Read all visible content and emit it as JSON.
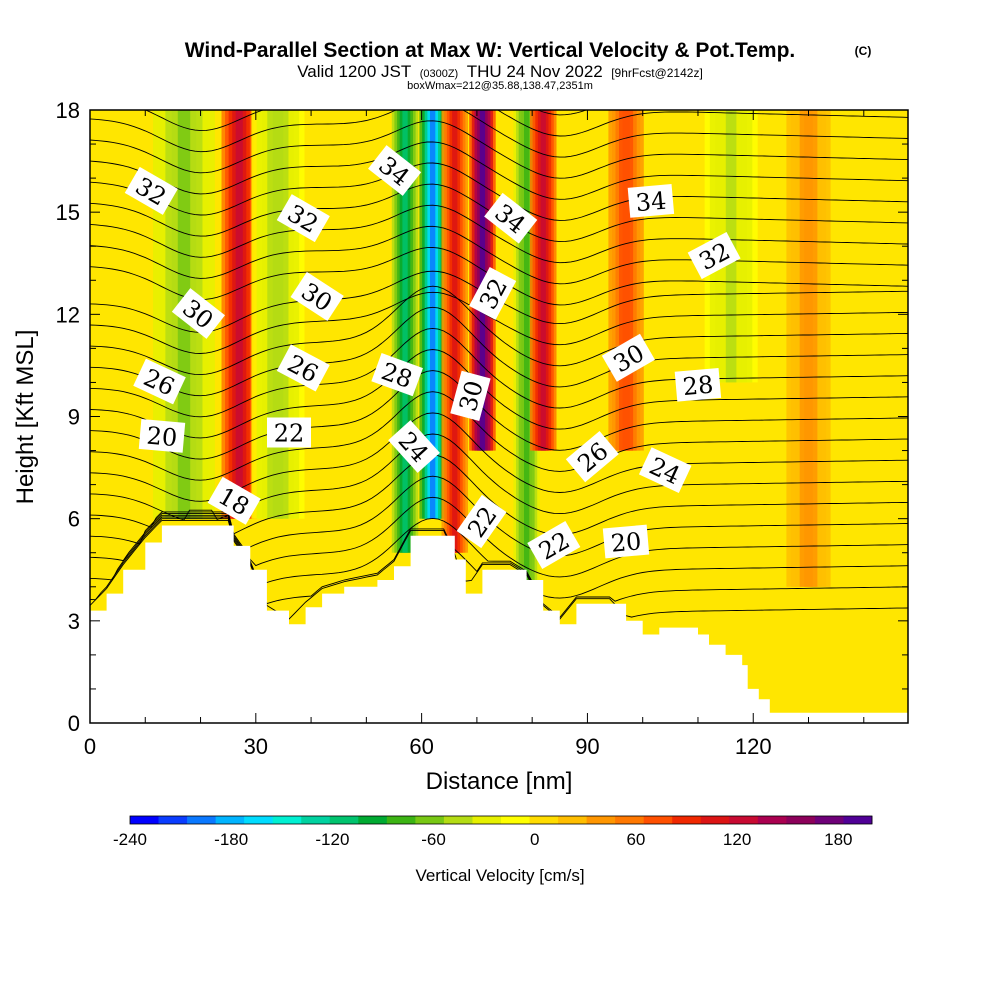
{
  "title": "Wind-Parallel Section at Max W: Vertical Velocity & Pot.Temp.",
  "title_mark": "(C)",
  "subtitle_valid": "Valid 1200 JST",
  "subtitle_utc": "(0300Z)",
  "subtitle_date": "THU 24 Nov 2022",
  "subtitle_fcst": "[9hrFcst@2142z]",
  "subtitle_box": "boxWmax=212@35.88,138.47,2351m",
  "chart_data": {
    "type": "heatmap",
    "description_fields": "vertical velocity (color fill) with potential temperature contours (labeled)",
    "xlabel": "Distance [nm]",
    "ylabel": "Height [Kft MSL]",
    "xlim": [
      0,
      148
    ],
    "ylim": [
      0,
      18
    ],
    "x_ticks": [
      0,
      30,
      60,
      90,
      120
    ],
    "y_ticks": [
      0,
      3,
      6,
      9,
      12,
      15,
      18
    ],
    "colorbar": {
      "label": "Vertical Velocity [cm/s]",
      "range": [
        -240,
        200
      ],
      "tick_values": [
        -240,
        -180,
        -120,
        -60,
        0,
        60,
        120,
        180
      ],
      "colors": [
        "#0000ff",
        "#0a3cff",
        "#0a78ff",
        "#00b4ff",
        "#00dcff",
        "#00f0d2",
        "#00d2a0",
        "#00c36e",
        "#00aa32",
        "#3cb414",
        "#78c814",
        "#b4dc14",
        "#e6f000",
        "#ffff00",
        "#ffdc00",
        "#ffbe00",
        "#ff9600",
        "#ff7800",
        "#ff5000",
        "#f02800",
        "#dc1414",
        "#c80a32",
        "#aa0050",
        "#8c005a",
        "#6e0078",
        "#500096"
      ]
    },
    "velocity_features": [
      {
        "x_center": 17,
        "width": 7,
        "y_range": [
          6,
          18
        ],
        "value": -60
      },
      {
        "x_center": 27,
        "width": 4,
        "y_range": [
          6,
          18
        ],
        "value": 130
      },
      {
        "x_center": 34,
        "width": 6,
        "y_range": [
          6,
          18
        ],
        "value": -50
      },
      {
        "x_center": 57,
        "width": 3,
        "y_range": [
          5,
          18
        ],
        "value": -110
      },
      {
        "x_center": 62,
        "width": 3,
        "y_range": [
          6,
          18
        ],
        "value": -190
      },
      {
        "x_center": 66,
        "width": 3,
        "y_range": [
          5,
          18
        ],
        "value": 100
      },
      {
        "x_center": 71,
        "width": 3,
        "y_range": [
          8,
          18
        ],
        "value": 190
      },
      {
        "x_center": 79,
        "width": 3,
        "y_range": [
          4,
          18
        ],
        "value": -80
      },
      {
        "x_center": 82,
        "width": 3,
        "y_range": [
          8,
          18
        ],
        "value": 120
      },
      {
        "x_center": 97,
        "width": 4,
        "y_range": [
          8,
          18
        ],
        "value": 80
      },
      {
        "x_center": 116,
        "width": 6,
        "y_range": [
          10,
          18
        ],
        "value": -40
      },
      {
        "x_center": 130,
        "width": 5,
        "y_range": [
          4,
          18
        ],
        "value": 40
      }
    ],
    "terrain": [
      [
        0,
        3.3
      ],
      [
        3,
        3.8
      ],
      [
        6,
        4.5
      ],
      [
        10,
        5.3
      ],
      [
        13,
        5.8
      ],
      [
        25,
        5.8
      ],
      [
        26,
        5.2
      ],
      [
        29,
        4.5
      ],
      [
        32,
        3.3
      ],
      [
        36,
        2.9
      ],
      [
        39,
        3.4
      ],
      [
        42,
        3.8
      ],
      [
        46,
        4.0
      ],
      [
        52,
        4.2
      ],
      [
        55,
        4.6
      ],
      [
        58,
        5.5
      ],
      [
        64,
        5.5
      ],
      [
        66,
        4.8
      ],
      [
        68,
        3.8
      ],
      [
        71,
        4.5
      ],
      [
        76,
        4.5
      ],
      [
        79,
        4.2
      ],
      [
        82,
        3.3
      ],
      [
        85,
        2.9
      ],
      [
        88,
        3.5
      ],
      [
        94,
        3.5
      ],
      [
        97,
        3.0
      ],
      [
        100,
        2.6
      ],
      [
        103,
        2.8
      ],
      [
        107,
        2.8
      ],
      [
        110,
        2.6
      ],
      [
        112,
        2.3
      ],
      [
        115,
        2.0
      ],
      [
        118,
        1.7
      ],
      [
        119,
        1.0
      ],
      [
        121,
        0.7
      ],
      [
        123,
        0.3
      ],
      [
        148,
        0.3
      ]
    ],
    "contour_labels": [
      {
        "text": "32",
        "x": 11,
        "y": 15.6,
        "angle": 30
      },
      {
        "text": "30",
        "x": 19.5,
        "y": 12.0,
        "angle": 38
      },
      {
        "text": "26",
        "x": 12.5,
        "y": 10.0,
        "angle": 25
      },
      {
        "text": "20",
        "x": 13,
        "y": 8.4,
        "angle": 5
      },
      {
        "text": "18",
        "x": 26,
        "y": 6.5,
        "angle": 30
      },
      {
        "text": "32",
        "x": 38.5,
        "y": 14.8,
        "angle": 30
      },
      {
        "text": "30",
        "x": 41,
        "y": 12.5,
        "angle": 33
      },
      {
        "text": "26",
        "x": 38.5,
        "y": 10.4,
        "angle": 28
      },
      {
        "text": "22",
        "x": 36,
        "y": 8.5,
        "angle": 0
      },
      {
        "text": "34",
        "x": 55,
        "y": 16.2,
        "angle": 38
      },
      {
        "text": "28",
        "x": 55.5,
        "y": 10.2,
        "angle": 20
      },
      {
        "text": "24",
        "x": 58.5,
        "y": 8.1,
        "angle": 48
      },
      {
        "text": "34",
        "x": 76,
        "y": 14.8,
        "angle": 38
      },
      {
        "text": "32",
        "x": 73,
        "y": 12.6,
        "angle": -62
      },
      {
        "text": "30",
        "x": 69,
        "y": 9.6,
        "angle": -75
      },
      {
        "text": "22",
        "x": 71,
        "y": 5.9,
        "angle": -55
      },
      {
        "text": "22",
        "x": 84,
        "y": 5.2,
        "angle": -30
      },
      {
        "text": "34",
        "x": 101.5,
        "y": 15.3,
        "angle": -5
      },
      {
        "text": "32",
        "x": 113,
        "y": 13.7,
        "angle": -28
      },
      {
        "text": "30",
        "x": 97.5,
        "y": 10.7,
        "angle": -30
      },
      {
        "text": "28",
        "x": 110,
        "y": 9.9,
        "angle": -5
      },
      {
        "text": "26",
        "x": 91,
        "y": 7.8,
        "angle": -40
      },
      {
        "text": "24",
        "x": 104,
        "y": 7.4,
        "angle": 25
      },
      {
        "text": "20",
        "x": 97,
        "y": 5.3,
        "angle": -5
      }
    ]
  }
}
